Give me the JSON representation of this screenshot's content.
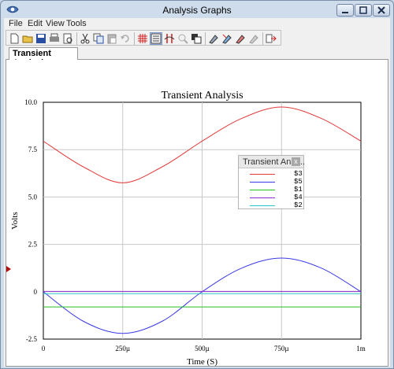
{
  "window": {
    "title": "Analysis Graphs"
  },
  "menu": [
    "File",
    "Edit",
    "View",
    "Tools"
  ],
  "toolbar": {
    "buttons": [
      "new-icon",
      "open-icon",
      "save-icon",
      "print-icon",
      "print-preview-icon",
      "cut-icon",
      "copy-icon",
      "paste-icon",
      "undo-icon",
      "grid-icon",
      "legend-icon",
      "cursors-icon",
      "zoom-icon",
      "overlay-icon",
      "select-icon",
      "pencil-icon",
      "style-icon",
      "edit-icon",
      "export-icon",
      "properties-icon",
      "copy-graph-icon"
    ]
  },
  "tab": {
    "label": "Transient Analysis"
  },
  "legend": {
    "title": "Transient Anal...",
    "close": "x",
    "items": [
      {
        "label": "$3",
        "color": "#e23a3a"
      },
      {
        "label": "$5",
        "color": "#3a3ae6"
      },
      {
        "label": "$1",
        "color": "#22c022"
      },
      {
        "label": "$4",
        "color": "#8a2ad0"
      },
      {
        "label": "$2",
        "color": "#2ec6c6"
      }
    ]
  },
  "chart_data": {
    "type": "line",
    "title": "Transient Analysis",
    "xlabel": "Time (S)",
    "ylabel": "Volts",
    "xlim": [
      0,
      0.001
    ],
    "ylim": [
      -2.5,
      10.0
    ],
    "grid": true,
    "legend": "top-right",
    "x_ticks": [
      {
        "value": 0,
        "label": "0"
      },
      {
        "value": 0.00025,
        "label": "250µ"
      },
      {
        "value": 0.0005,
        "label": "500µ"
      },
      {
        "value": 0.00075,
        "label": "750µ"
      },
      {
        "value": 0.001,
        "label": "1m"
      }
    ],
    "y_ticks": [
      {
        "value": 10,
        "label": "10.0"
      },
      {
        "value": 7.5,
        "label": "7.5"
      },
      {
        "value": 5,
        "label": "5.0"
      },
      {
        "value": 2.5,
        "label": "2.5"
      },
      {
        "value": 0,
        "label": "0"
      },
      {
        "value": -2.5,
        "label": "-2.5"
      }
    ],
    "series": [
      {
        "name": "$3",
        "color": "#e23a3a",
        "x": [
          0,
          0.000125,
          0.00025,
          0.000375,
          0.0005,
          0.000625,
          0.00075,
          0.000875,
          0.001
        ],
        "y": [
          7.95,
          6.6,
          5.75,
          6.6,
          7.95,
          9.15,
          9.75,
          9.15,
          7.95
        ]
      },
      {
        "name": "$5",
        "color": "#3a3ae6",
        "x": [
          0,
          0.000125,
          0.00025,
          0.000375,
          0.0005,
          0.000625,
          0.00075,
          0.000875,
          0.001
        ],
        "y": [
          0,
          -1.55,
          -2.2,
          -1.55,
          0,
          1.25,
          1.78,
          1.25,
          0
        ]
      },
      {
        "name": "$1",
        "color": "#22c022",
        "x": [
          0,
          0.001
        ],
        "y": [
          -0.8,
          -0.8
        ]
      },
      {
        "name": "$4",
        "color": "#8a2ad0",
        "x": [
          0,
          0.001
        ],
        "y": [
          0.02,
          0.02
        ]
      },
      {
        "name": "$2",
        "color": "#2ec6c6",
        "x": [
          0,
          0.001
        ],
        "y": [
          -0.1,
          -0.1
        ]
      }
    ]
  }
}
